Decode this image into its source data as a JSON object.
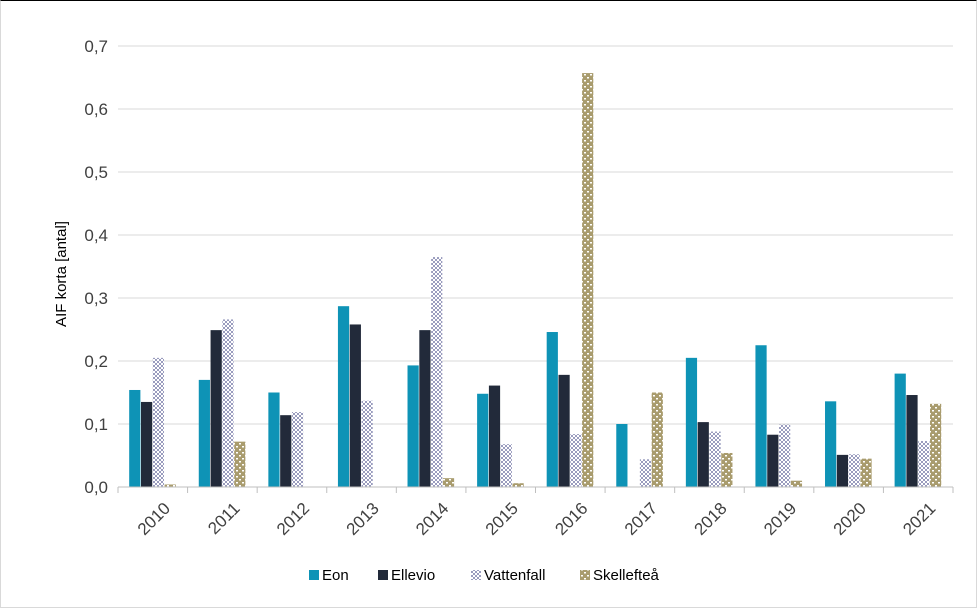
{
  "chart_data": {
    "type": "bar",
    "ylabel": "AIF korta [antal]",
    "xlabel": "",
    "title": "",
    "ylim": [
      0,
      0.7
    ],
    "ytick_step": 0.1,
    "ytick_labels": [
      "0,0",
      "0,1",
      "0,2",
      "0,3",
      "0,4",
      "0,5",
      "0,6",
      "0,7"
    ],
    "grid": "horizontal",
    "legend_position": "bottom",
    "categories": [
      "2010",
      "2011",
      "2012",
      "2013",
      "2014",
      "2015",
      "2016",
      "2017",
      "2018",
      "2019",
      "2020",
      "2021"
    ],
    "series": [
      {
        "name": "Eon",
        "color": "#0e93b6",
        "pattern": "solid",
        "values": [
          0.154,
          0.17,
          0.15,
          0.287,
          0.193,
          0.148,
          0.246,
          0.1,
          0.205,
          0.225,
          0.136,
          0.18
        ]
      },
      {
        "name": "Ellevio",
        "color": "#222a3a",
        "pattern": "solid",
        "values": [
          0.135,
          0.249,
          0.114,
          0.258,
          0.249,
          0.161,
          0.178,
          0.0,
          0.103,
          0.083,
          0.051,
          0.146
        ]
      },
      {
        "name": "Vattenfall",
        "color": "#a4a6c6",
        "pattern": "checker",
        "values": [
          0.205,
          0.266,
          0.119,
          0.137,
          0.365,
          0.068,
          0.084,
          0.044,
          0.088,
          0.099,
          0.052,
          0.073
        ]
      },
      {
        "name": "Skellefteå",
        "color": "#a99c6e",
        "pattern": "dots",
        "values": [
          0.004,
          0.072,
          0.0,
          0.0,
          0.014,
          0.006,
          0.657,
          0.15,
          0.054,
          0.01,
          0.045,
          0.132
        ]
      }
    ]
  }
}
